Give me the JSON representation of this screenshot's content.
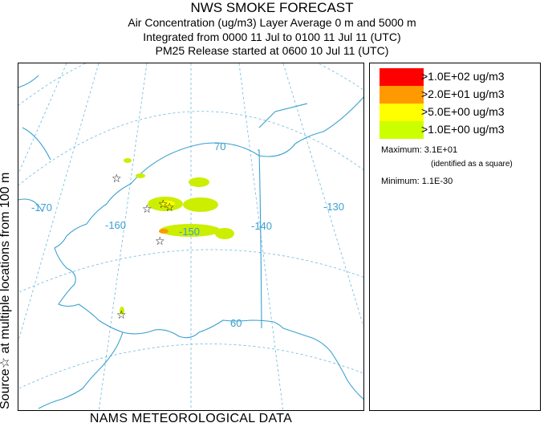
{
  "header": {
    "title": "NWS SMOKE FORECAST",
    "line2": "Air Concentration (ug/m3) Layer Average    0 m and  5000 m",
    "line3": "Integrated from 0000 11 Jul to 0100 11 Jul 11 (UTC)",
    "line4": "PM25 Release started at 0600 10 Jul 11 (UTC)"
  },
  "side_label": "Source☆  at multiple locations  from  100 m",
  "footer": "NAMS METEOROLOGICAL DATA",
  "map": {
    "graticule_labels": [
      "70",
      "-170",
      "-160",
      "-150",
      "-140",
      "-130",
      "60"
    ],
    "colors": {
      "coast": "#3aa0d0",
      "graticule": "#3aa0d0",
      "plume_low": "#ccee00",
      "plume_mid": "#ffff00",
      "plume_high": "#ff9900"
    }
  },
  "legend": {
    "items": [
      {
        "label": ">1.0E+02 ug/m3",
        "color": "#ff0000"
      },
      {
        "label": ">2.0E+01 ug/m3",
        "color": "#ff9900"
      },
      {
        "label": ">5.0E+00 ug/m3",
        "color": "#ffff00"
      },
      {
        "label": ">1.0E+00 ug/m3",
        "color": "#ccff00"
      }
    ],
    "maximum": "Maximum: 3.1E+01",
    "maximum_note": "(identified as a square)",
    "minimum": "Minimum: 1.1E-30"
  }
}
